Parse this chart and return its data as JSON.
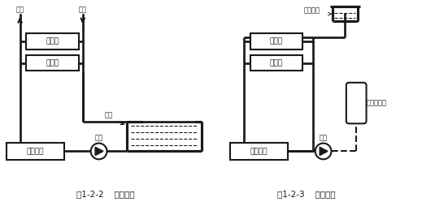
{
  "bg_color": "#ffffff",
  "line_color": "#1a1a1a",
  "box_fill": "#ffffff",
  "lw": 1.5,
  "fig1_caption": "图1-2-2    开式系统",
  "fig2_caption": "图1-2-3    闭式系统",
  "label_ac1": "空调机",
  "label_ac2": "空调机",
  "label_chiller": "冷水机组",
  "label_pump": "水泵",
  "label_tank": "水池",
  "label_supply": "供水",
  "label_return": "回水",
  "label_exp_tank": "膨胀水箱",
  "label_pressure": "气体定压罐",
  "label_ac1_r": "空调机",
  "label_ac2_r": "空调机",
  "label_chiller_r": "冷水机组",
  "label_pump_r": "水泵"
}
